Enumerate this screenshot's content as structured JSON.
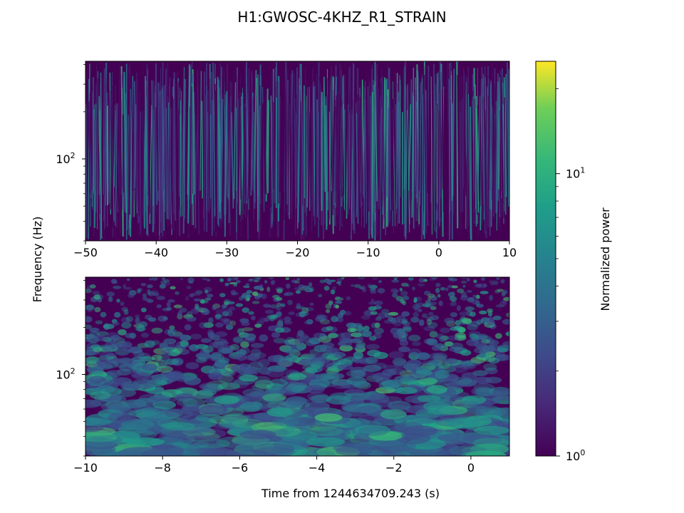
{
  "chart_data": {
    "title": "H1:GWOSC-4KHZ_R1_STRAIN",
    "ylabel": "Frequency (Hz)",
    "xlabel": "Time from 1244634709.243 (s)",
    "colorbar": {
      "label": "Normalized power",
      "colormap": "viridis",
      "scale": "log",
      "range": [
        1,
        25
      ],
      "ticks": [
        {
          "value": 1,
          "base": "10",
          "exp": "0"
        },
        {
          "value": 10,
          "base": "10",
          "exp": "1"
        }
      ]
    },
    "panels": [
      {
        "type": "heatmap",
        "xlim": [
          -50,
          10
        ],
        "ylim": [
          30,
          420
        ],
        "yscale": "log",
        "xticks": [
          {
            "value": -50,
            "label": "−50"
          },
          {
            "value": -40,
            "label": "−40"
          },
          {
            "value": -30,
            "label": "−30"
          },
          {
            "value": -20,
            "label": "−20"
          },
          {
            "value": -10,
            "label": "−10"
          },
          {
            "value": 0,
            "label": "0"
          },
          {
            "value": 10,
            "label": "10"
          }
        ],
        "yticks": [
          {
            "value": 100,
            "base": "10",
            "exp": "2"
          }
        ]
      },
      {
        "type": "heatmap",
        "xlim": [
          -10,
          1
        ],
        "ylim": [
          30,
          420
        ],
        "yscale": "log",
        "xticks": [
          {
            "value": -10,
            "label": "−10"
          },
          {
            "value": -8,
            "label": "−8"
          },
          {
            "value": -6,
            "label": "−6"
          },
          {
            "value": -4,
            "label": "−4"
          },
          {
            "value": -2,
            "label": "−2"
          },
          {
            "value": 0,
            "label": "0"
          }
        ],
        "yticks": [
          {
            "value": 100,
            "base": "10",
            "exp": "2"
          }
        ]
      }
    ]
  }
}
